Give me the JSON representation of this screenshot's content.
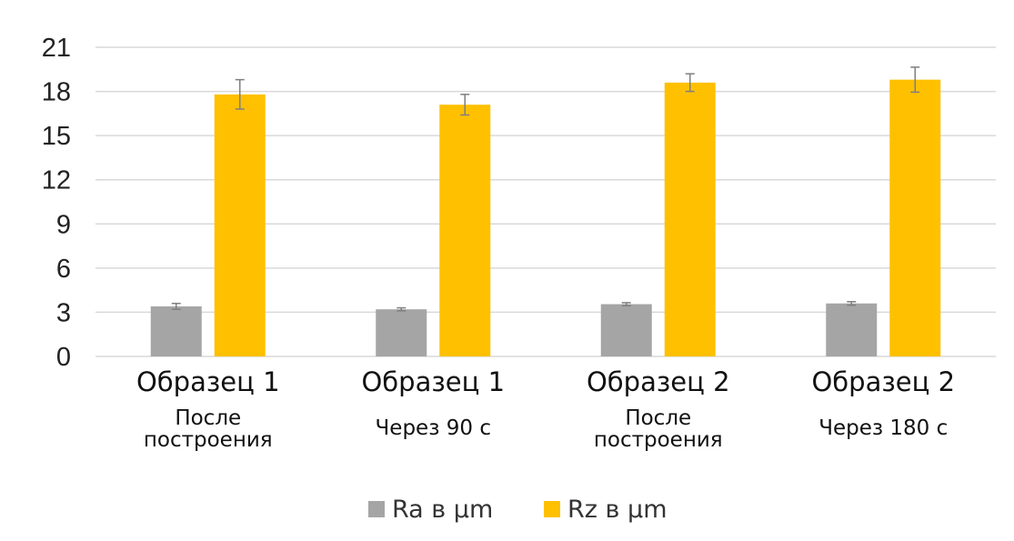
{
  "chart_data": {
    "type": "bar",
    "title": "",
    "xlabel": "",
    "ylabel": "",
    "ylim": [
      0,
      21
    ],
    "yticks": [
      0,
      3,
      6,
      9,
      12,
      15,
      18,
      21
    ],
    "grid": true,
    "legend_position": "bottom",
    "categories": [
      {
        "main": "Образец 1",
        "sub": [
          "После",
          "построения"
        ]
      },
      {
        "main": "Образец 1",
        "sub": [
          "Через 90 с"
        ]
      },
      {
        "main": "Образец 2",
        "sub": [
          "После",
          "построения"
        ]
      },
      {
        "main": "Образец 2",
        "sub": [
          "Через 180 с"
        ]
      }
    ],
    "series": [
      {
        "name": "Ra в μm",
        "color": "#a5a5a5",
        "values": [
          3.4,
          3.2,
          3.55,
          3.6
        ],
        "errors": [
          0.2,
          0.1,
          0.1,
          0.12
        ]
      },
      {
        "name": "Rz в μm",
        "color": "#ffc000",
        "values": [
          17.8,
          17.1,
          18.6,
          18.8
        ],
        "errors": [
          1.0,
          0.7,
          0.6,
          0.85
        ]
      }
    ]
  }
}
